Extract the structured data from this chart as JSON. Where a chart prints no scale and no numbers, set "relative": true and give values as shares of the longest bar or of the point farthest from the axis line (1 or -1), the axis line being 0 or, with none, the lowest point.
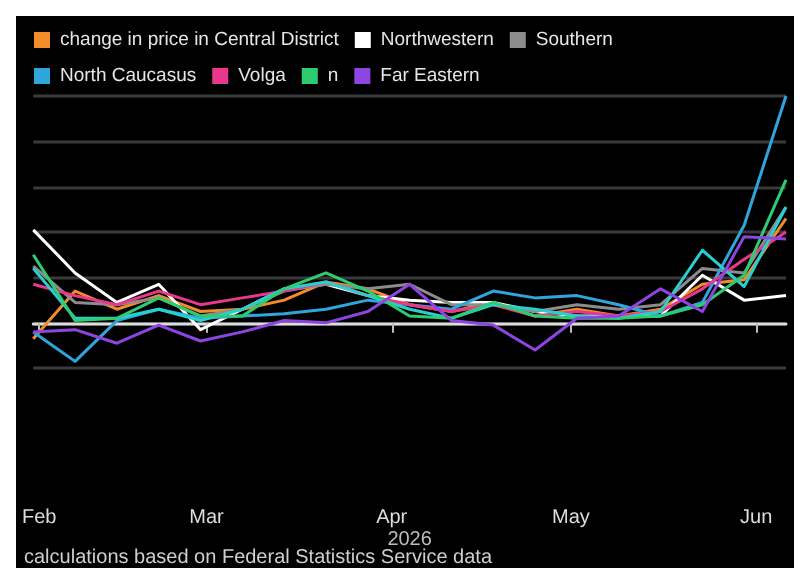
{
  "chart_data": {
    "type": "line",
    "relative": true,
    "grid": "y",
    "legend": "top left",
    "marker": "none",
    "line_style": "solid",
    "xlabel": "2026",
    "annotations": [
      "calculations based on Federal Statistics Service data"
    ],
    "x": [
      "2026-01-31",
      "2026-02-07",
      "2026-02-14",
      "2026-02-21",
      "2026-02-28",
      "2026-03-07",
      "2026-03-14",
      "2026-03-21",
      "2026-03-28",
      "2026-04-04",
      "2026-04-11",
      "2026-04-18",
      "2026-04-25",
      "2026-05-02",
      "2026-05-09",
      "2026-05-16",
      "2026-05-23",
      "2026-05-30",
      "2026-06-06"
    ],
    "xlim": [
      "2026-01-31",
      "2026-06-06"
    ],
    "xticks": [
      {
        "value": "2026-02-01",
        "label": "Feb"
      },
      {
        "value": "2026-03-01",
        "label": "Mar"
      },
      {
        "value": "2026-04-01",
        "label": "Apr"
      },
      {
        "value": "2026-05-01",
        "label": "May"
      },
      {
        "value": "2026-06-01",
        "label": "Jun"
      }
    ],
    "series": [
      {
        "name": "change in price in Central District",
        "color": "#f28c28",
        "values": [
          -0.07,
          0.14,
          0.06,
          0.12,
          0.05,
          0.06,
          0.1,
          0.18,
          0.15,
          0.08,
          0.05,
          0.09,
          0.03,
          0.06,
          0.03,
          0.06,
          0.17,
          0.19,
          0.46
        ]
      },
      {
        "name": "Northwestern",
        "color": "#ffffff",
        "values": [
          0.41,
          0.22,
          0.09,
          0.17,
          -0.03,
          0.06,
          0.15,
          0.17,
          0.12,
          0.1,
          0.09,
          0.09,
          0.05,
          0.03,
          0.03,
          0.03,
          0.21,
          0.1,
          0.12
        ]
      },
      {
        "name": "Southern",
        "color": "#8c8c8c",
        "values": [
          0.25,
          0.09,
          0.08,
          0.11,
          0.03,
          0.06,
          0.14,
          0.17,
          0.15,
          0.17,
          0.08,
          0.08,
          0.05,
          0.08,
          0.06,
          0.08,
          0.24,
          0.22,
          0.51
        ]
      },
      {
        "name": "North Caucasus",
        "color": "#2ea6dc",
        "values": [
          -0.04,
          -0.17,
          0.01,
          0.06,
          0.02,
          0.03,
          0.04,
          0.06,
          0.1,
          0.08,
          0.06,
          0.14,
          0.11,
          0.12,
          0.08,
          0.03,
          0.09,
          0.43,
          1
        ]
      },
      {
        "name": "Volga",
        "color": "#e8378c",
        "values": [
          0.17,
          0.12,
          0.08,
          0.14,
          0.08,
          0.11,
          0.14,
          0.18,
          0.12,
          0.08,
          0.05,
          0.08,
          0.03,
          0.05,
          0.03,
          0.05,
          0.15,
          0.28,
          0.4
        ]
      },
      {
        "color": "#26d0ce",
        "values": [
          0.24,
          0.02,
          0.02,
          0.06,
          0.01,
          0.06,
          0.15,
          0.18,
          0.12,
          0.06,
          0.02,
          0.08,
          0.06,
          0.03,
          0.02,
          0.05,
          0.32,
          0.16,
          0.51
        ]
      },
      {
        "name": "n",
        "color": "#2ecc71",
        "values": [
          0.3,
          0.01,
          0.02,
          0.11,
          0.03,
          0.03,
          0.15,
          0.22,
          0.14,
          0.03,
          0.02,
          0.09,
          0.03,
          0.02,
          0.02,
          0.03,
          0.08,
          0.21,
          0.63
        ]
      },
      {
        "name": "Far Eastern",
        "color": "#8e44e0",
        "values": [
          -0.04,
          -0.03,
          -0.09,
          -0.01,
          -0.08,
          -0.04,
          0.01,
          0,
          0.05,
          0.17,
          0.01,
          -0.01,
          -0.12,
          0.02,
          0.03,
          0.15,
          0.05,
          0.38,
          0.37
        ]
      }
    ]
  }
}
